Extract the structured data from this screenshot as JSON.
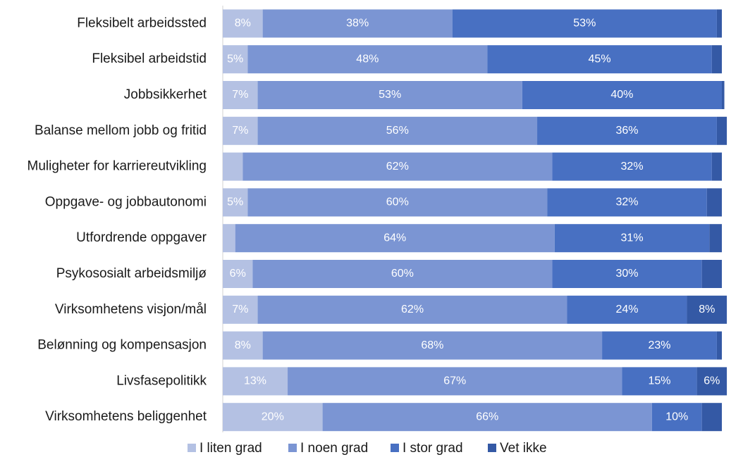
{
  "chart_data": {
    "type": "stacked-bar-horizontal",
    "categories": [
      "Fleksibelt arbeidssted",
      "Fleksibel arbeidstid",
      "Jobbsikkerhet",
      "Balanse mellom jobb og fritid",
      "Muligheter for karriereutvikling",
      "Oppgave- og jobbautonomi",
      "Utfordrende oppgaver",
      "Psykososialt arbeidsmiljø",
      "Virksomhetens visjon/mål",
      "Belønning og kompensasjon",
      "Livsfasepolitikk",
      "Virksomhetens beliggenhet"
    ],
    "xlim": [
      0,
      100
    ],
    "series": [
      {
        "name": "I liten grad",
        "color": "#b4c1e3",
        "values": [
          8,
          5,
          7,
          7,
          4,
          5,
          2.5,
          6,
          7,
          8,
          13,
          20
        ],
        "value_labels": [
          "8%",
          "5%",
          "7%",
          "7%",
          null,
          "5%",
          null,
          "6%",
          "7%",
          "8%",
          "13%",
          "20%"
        ]
      },
      {
        "name": "I noen grad",
        "color": "#7b95d3",
        "values": [
          38,
          48,
          53,
          56,
          62,
          60,
          64,
          60,
          62,
          68,
          67,
          66
        ],
        "value_labels": [
          "38%",
          "48%",
          "53%",
          "56%",
          "62%",
          "60%",
          "64%",
          "60%",
          "62%",
          "68%",
          "67%",
          "66%"
        ]
      },
      {
        "name": "I stor grad",
        "color": "#4870c2",
        "values": [
          53,
          45,
          40,
          36,
          32,
          32,
          31,
          30,
          24,
          23,
          15,
          10
        ],
        "value_labels": [
          "53%",
          "45%",
          "40%",
          "36%",
          "32%",
          "32%",
          "31%",
          "30%",
          "24%",
          "23%",
          "15%",
          "10%"
        ]
      },
      {
        "name": "Vet ikke",
        "color": "#3459a5",
        "values": [
          1,
          2,
          0.5,
          2,
          2,
          3,
          2.5,
          4,
          8,
          1,
          6,
          4
        ],
        "value_labels": [
          null,
          null,
          null,
          null,
          null,
          null,
          null,
          null,
          "8%",
          null,
          "6%",
          null
        ]
      }
    ]
  }
}
